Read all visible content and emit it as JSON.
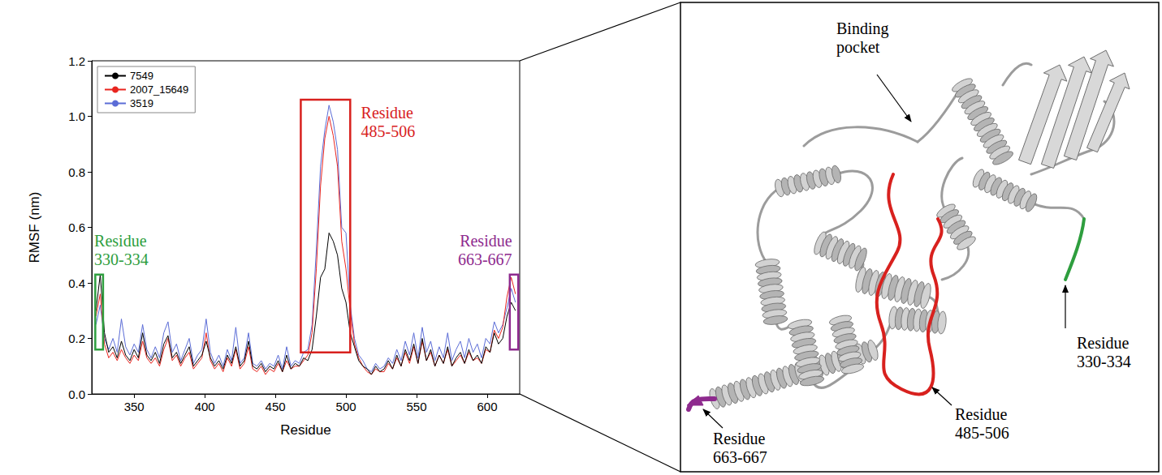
{
  "chart_data": {
    "type": "line",
    "x_label": "Residue",
    "y_label": "RMSF (nm)",
    "xlim": [
      320,
      623
    ],
    "xticks": [
      350,
      400,
      450,
      500,
      550,
      600
    ],
    "ylim": [
      0,
      1.2
    ],
    "yticks": [
      {
        "value": 0,
        "label": "0.0"
      },
      0.2,
      0.4,
      0.6,
      0.8,
      {
        "value": 1,
        "label": "1.0"
      },
      1.2
    ],
    "grid": false,
    "legend": "top-left",
    "x": [
      323,
      326,
      329,
      332,
      335,
      338,
      341,
      344,
      347,
      350,
      353,
      356,
      359,
      362,
      365,
      368,
      371,
      374,
      377,
      380,
      383,
      386,
      389,
      392,
      395,
      398,
      401,
      404,
      407,
      410,
      413,
      416,
      419,
      422,
      425,
      428,
      431,
      434,
      437,
      440,
      443,
      446,
      449,
      452,
      455,
      458,
      461,
      464,
      467,
      470,
      473,
      476,
      479,
      482,
      485,
      488,
      491,
      494,
      497,
      500,
      503,
      506,
      509,
      512,
      515,
      518,
      521,
      524,
      527,
      530,
      533,
      536,
      539,
      542,
      545,
      548,
      551,
      554,
      557,
      560,
      563,
      566,
      569,
      572,
      575,
      578,
      581,
      584,
      587,
      590,
      593,
      596,
      599,
      602,
      605,
      608,
      611,
      614,
      617,
      620
    ],
    "series": [
      {
        "name": "7549",
        "color": "#000000",
        "values": [
          0.3,
          0.43,
          0.22,
          0.15,
          0.17,
          0.13,
          0.19,
          0.14,
          0.12,
          0.16,
          0.13,
          0.22,
          0.14,
          0.12,
          0.15,
          0.11,
          0.18,
          0.21,
          0.13,
          0.15,
          0.11,
          0.14,
          0.17,
          0.1,
          0.12,
          0.14,
          0.19,
          0.13,
          0.1,
          0.12,
          0.09,
          0.14,
          0.11,
          0.17,
          0.1,
          0.12,
          0.19,
          0.1,
          0.09,
          0.11,
          0.08,
          0.1,
          0.09,
          0.12,
          0.08,
          0.14,
          0.09,
          0.11,
          0.1,
          0.13,
          0.12,
          0.16,
          0.28,
          0.42,
          0.45,
          0.58,
          0.55,
          0.5,
          0.38,
          0.33,
          0.22,
          0.17,
          0.12,
          0.1,
          0.09,
          0.07,
          0.1,
          0.08,
          0.09,
          0.12,
          0.09,
          0.14,
          0.1,
          0.16,
          0.12,
          0.18,
          0.11,
          0.2,
          0.12,
          0.16,
          0.1,
          0.14,
          0.11,
          0.17,
          0.1,
          0.13,
          0.15,
          0.11,
          0.16,
          0.12,
          0.14,
          0.11,
          0.17,
          0.15,
          0.22,
          0.18,
          0.2,
          0.28,
          0.33,
          0.3
        ]
      },
      {
        "name": "2007_15649",
        "color": "#e8251f",
        "values": [
          0.28,
          0.36,
          0.18,
          0.13,
          0.15,
          0.12,
          0.16,
          0.13,
          0.11,
          0.14,
          0.12,
          0.19,
          0.13,
          0.11,
          0.13,
          0.1,
          0.16,
          0.2,
          0.12,
          0.14,
          0.1,
          0.13,
          0.15,
          0.09,
          0.11,
          0.13,
          0.22,
          0.12,
          0.09,
          0.11,
          0.08,
          0.13,
          0.1,
          0.16,
          0.09,
          0.11,
          0.17,
          0.09,
          0.08,
          0.1,
          0.07,
          0.09,
          0.08,
          0.11,
          0.08,
          0.12,
          0.09,
          0.1,
          0.1,
          0.12,
          0.14,
          0.22,
          0.45,
          0.75,
          0.92,
          1.0,
          0.93,
          0.82,
          0.55,
          0.45,
          0.3,
          0.18,
          0.13,
          0.1,
          0.08,
          0.07,
          0.09,
          0.08,
          0.08,
          0.11,
          0.09,
          0.13,
          0.1,
          0.15,
          0.11,
          0.17,
          0.11,
          0.19,
          0.12,
          0.15,
          0.1,
          0.14,
          0.11,
          0.16,
          0.1,
          0.12,
          0.14,
          0.11,
          0.15,
          0.12,
          0.13,
          0.11,
          0.16,
          0.15,
          0.23,
          0.2,
          0.24,
          0.35,
          0.42,
          0.36
        ]
      },
      {
        "name": "3519",
        "color": "#5b6cd6",
        "values": [
          0.25,
          0.32,
          0.2,
          0.16,
          0.2,
          0.15,
          0.27,
          0.17,
          0.14,
          0.18,
          0.15,
          0.25,
          0.16,
          0.13,
          0.17,
          0.13,
          0.22,
          0.26,
          0.15,
          0.18,
          0.12,
          0.16,
          0.2,
          0.11,
          0.14,
          0.16,
          0.27,
          0.15,
          0.11,
          0.14,
          0.1,
          0.16,
          0.12,
          0.24,
          0.11,
          0.13,
          0.22,
          0.11,
          0.1,
          0.12,
          0.09,
          0.11,
          0.1,
          0.14,
          0.09,
          0.17,
          0.1,
          0.12,
          0.11,
          0.15,
          0.16,
          0.25,
          0.52,
          0.82,
          0.95,
          1.04,
          0.98,
          0.88,
          0.6,
          0.58,
          0.32,
          0.2,
          0.14,
          0.12,
          0.09,
          0.08,
          0.11,
          0.09,
          0.1,
          0.13,
          0.11,
          0.16,
          0.12,
          0.19,
          0.14,
          0.22,
          0.13,
          0.24,
          0.15,
          0.19,
          0.12,
          0.17,
          0.13,
          0.22,
          0.12,
          0.16,
          0.19,
          0.13,
          0.2,
          0.15,
          0.18,
          0.13,
          0.2,
          0.18,
          0.26,
          0.22,
          0.25,
          0.31,
          0.38,
          0.33
        ]
      }
    ],
    "annotations": [
      {
        "text": "Residue 330-334",
        "color": "#2e9e3e",
        "x": [
          322.5,
          328
        ],
        "y": [
          0.16,
          0.43
        ]
      },
      {
        "text": "Residue 485-506",
        "color": "#d8211e",
        "x": [
          468,
          503
        ],
        "y": [
          0.15,
          1.06
        ]
      },
      {
        "text": "Residue 663-667",
        "color": "#8e2a8e",
        "x": [
          616,
          622
        ],
        "y": [
          0.16,
          0.43
        ]
      }
    ]
  },
  "diagram": {
    "labels": [
      {
        "text": "Binding pocket"
      },
      {
        "text": "Residue 330-334",
        "color": "#2e9e3e"
      },
      {
        "text": "Residue 485-506",
        "color": "#d8211e"
      },
      {
        "text": "Residue 663-667",
        "color": "#8e2a8e"
      }
    ]
  }
}
